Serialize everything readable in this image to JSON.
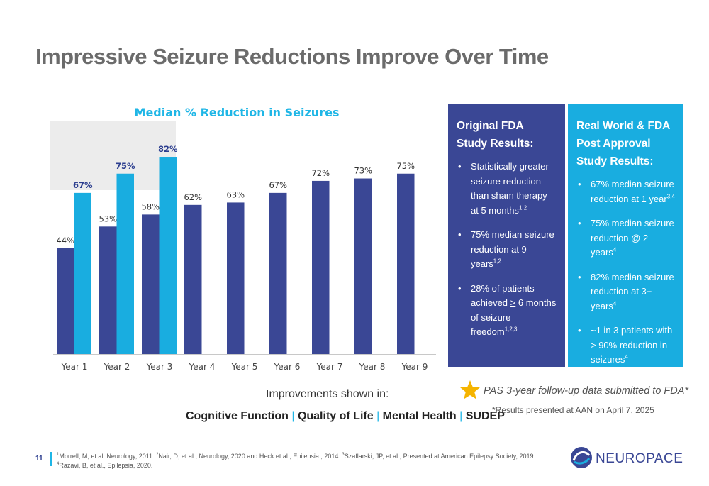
{
  "slide": {
    "title": "Impressive Seizure Reductions Improve Over Time",
    "page_number": "11"
  },
  "chart_data": {
    "type": "bar",
    "title": "Median % Reduction in Seizures",
    "categories": [
      "Year 1",
      "Year 2",
      "Year 3",
      "Year 4",
      "Year 5",
      "Year 6",
      "Year 7",
      "Year 8",
      "Year 9"
    ],
    "series": [
      {
        "color": "#3a4795",
        "values": [
          44,
          53,
          58,
          62,
          63,
          67,
          72,
          73,
          75
        ],
        "labels": [
          "44%",
          "53%",
          "58%",
          "62%",
          "63%",
          "67%",
          "72%",
          "73%",
          "75%"
        ]
      },
      {
        "color": "#19ade0",
        "values": [
          67,
          75,
          82,
          null,
          null,
          null,
          null,
          null,
          null
        ],
        "labels": [
          "67%",
          "75%",
          "82%",
          "",
          "",
          "",
          "",
          "",
          ""
        ]
      }
    ],
    "ylim": [
      0,
      100
    ],
    "highlight_categories": [
      "Year 1",
      "Year 2",
      "Year 3"
    ],
    "grid": false,
    "legend": "none"
  },
  "panels": {
    "fda": {
      "title": "Original FDA Study Results:",
      "bullets": [
        {
          "text": "Statistically greater seizure reduction than sham therapy at 5 months",
          "sup": "1,2"
        },
        {
          "text": "75% median seizure reduction at 9 years",
          "sup": "1,2"
        },
        {
          "pre": "28% of patients achieved ",
          "gte": ">",
          "text": " 6 months of seizure freedom",
          "sup": "1,2,3"
        }
      ]
    },
    "real_world": {
      "title": "Real World & FDA Post Approval Study Results:",
      "bullets": [
        {
          "text": "67% median seizure reduction at 1 year",
          "sup": "3,4"
        },
        {
          "text": "75% median seizure reduction @ 2 years",
          "sup": "4"
        },
        {
          "text": "82% median seizure reduction at 3+ years",
          "sup": "4"
        },
        {
          "text": "~1 in 3 patients with > 90% reduction in seizures",
          "sup": "4"
        }
      ]
    }
  },
  "improvements": {
    "heading": "Improvements shown in:",
    "items": [
      "Cognitive Function",
      "Quality of Life",
      "Mental Health",
      "SUDEP"
    ],
    "separator": "|"
  },
  "notes": {
    "pas": "PAS 3-year follow-up data submitted to FDA*",
    "aan": "*Results presented at AAN on April 7, 2025",
    "star_icon": "star-icon",
    "star_color": "#f5b400"
  },
  "footnote": {
    "parts": [
      {
        "sup": "1",
        "text": "Morrell, M, et al. Neurology, 2011. "
      },
      {
        "sup": "2",
        "text": "Nair, D, et al., Neurology, 2020 and Heck et al., Epilepsia , 2014. "
      },
      {
        "sup": "3",
        "text": "Szaflarski, JP, et al., Presented at American Epilepsy Society, 2019. "
      },
      {
        "sup": "4",
        "text": "Razavi, B, et al., Epilepsia, 2020."
      }
    ]
  },
  "logo": {
    "text": "NEUROPACE",
    "color": "#3a4795"
  },
  "colors": {
    "accent": "#19ade0",
    "navy": "#3a4795",
    "title_gray": "#6b6b6b"
  }
}
